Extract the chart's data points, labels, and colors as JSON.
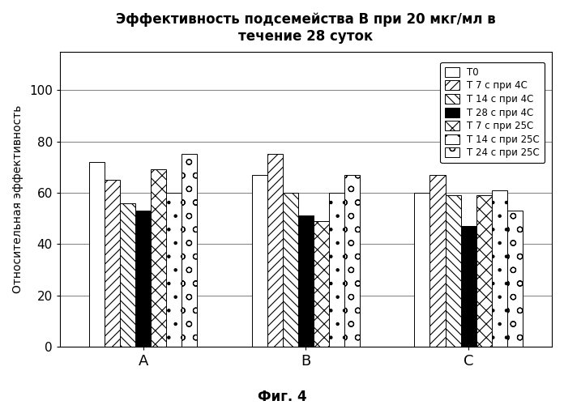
{
  "title": "Эффективность подсемейства В при 20 мкг/мл в\nтечение 28 суток",
  "ylabel": "Относительная эффективность",
  "xlabel_bottom": "Фиг. 4",
  "groups": [
    "A",
    "B",
    "C"
  ],
  "series_labels": [
    "Т0",
    "Т 7 с при 4С",
    "Т 14 с при 4С",
    "Т 28 с при 4С",
    "Т 7 с при 25С",
    "Т 14 с при 25С",
    "Т 24 с при 25С"
  ],
  "values": {
    "A": [
      72,
      65,
      56,
      53,
      69,
      60,
      75
    ],
    "B": [
      67,
      75,
      60,
      51,
      49,
      60,
      67
    ],
    "C": [
      60,
      67,
      59,
      47,
      59,
      61,
      53
    ]
  },
  "ylim": [
    0,
    115
  ],
  "yticks": [
    0,
    20,
    40,
    60,
    80,
    100
  ],
  "grid_lines": [
    20,
    40,
    60,
    80,
    100
  ],
  "background_color": "#ffffff",
  "bar_edge_color": "#000000",
  "figsize": [
    6.96,
    5.0
  ],
  "dpi": 100
}
